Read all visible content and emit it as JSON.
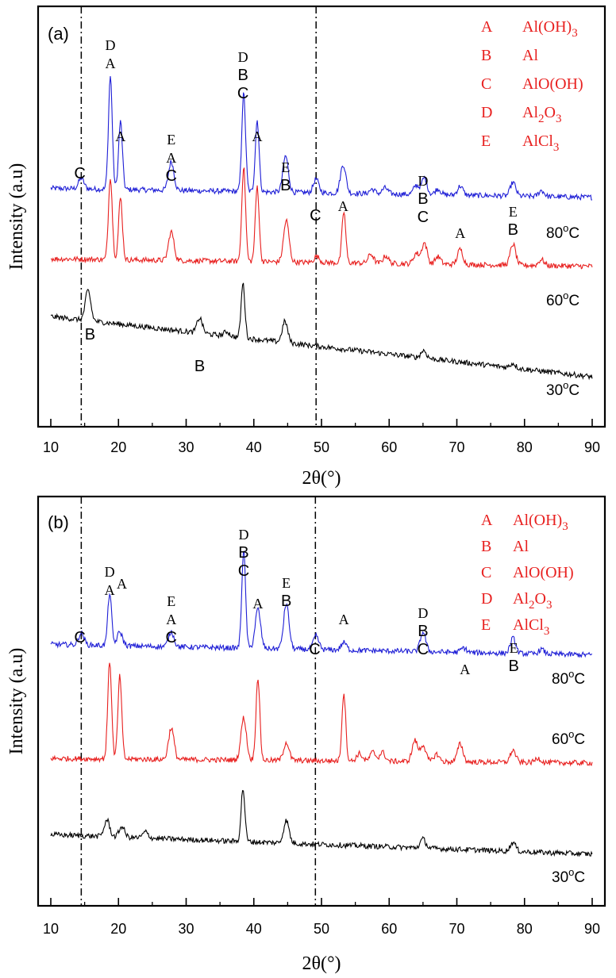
{
  "chart_data": [
    {
      "panel": "(a)",
      "type": "line",
      "xlabel": "2θ(°)",
      "ylabel": "Intensity (a.u)",
      "xlim": [
        10,
        90
      ],
      "xticks": [
        "10",
        "20",
        "30",
        "40",
        "50",
        "60",
        "70",
        "80",
        "90"
      ],
      "ref_lines_x": [
        14.5,
        49.2
      ],
      "legend": [
        {
          "letter": "A",
          "phase": "Al(OH)3"
        },
        {
          "letter": "B",
          "phase": "Al"
        },
        {
          "letter": "C",
          "phase": "AlO(OH)"
        },
        {
          "letter": "D",
          "phase": "Al2O3"
        },
        {
          "letter": "E",
          "phase": "AlCl3"
        }
      ],
      "series": [
        {
          "name": "80°C",
          "color": "#1f1fd6",
          "offset": 270,
          "start": 8,
          "end": -4,
          "peaks": [
            [
              14.5,
              14
            ],
            [
              18.8,
              150
            ],
            [
              20.3,
              90
            ],
            [
              27.8,
              38
            ],
            [
              38.5,
              130
            ],
            [
              40.5,
              95
            ],
            [
              44.7,
              48
            ],
            [
              49.2,
              18
            ],
            [
              53.2,
              38
            ],
            [
              57.5,
              6
            ],
            [
              59.4,
              8
            ],
            [
              64.0,
              12
            ],
            [
              65.2,
              22
            ],
            [
              67.2,
              8
            ],
            [
              70.5,
              12
            ],
            [
              78.3,
              18
            ],
            [
              82.5,
              8
            ]
          ]
        },
        {
          "name": "60°C",
          "color": "#e8201f",
          "offset": 185,
          "start": 4,
          "end": -6,
          "peaks": [
            [
              18.8,
              110
            ],
            [
              20.3,
              82
            ],
            [
              27.8,
              38
            ],
            [
              38.5,
              125
            ],
            [
              40.5,
              100
            ],
            [
              44.8,
              55
            ],
            [
              49.3,
              8
            ],
            [
              53.3,
              68
            ],
            [
              57.3,
              12
            ],
            [
              59.5,
              10
            ],
            [
              64.0,
              14
            ],
            [
              65.2,
              28
            ],
            [
              67.2,
              10
            ],
            [
              70.5,
              20
            ],
            [
              78.3,
              28
            ],
            [
              82.5,
              8
            ]
          ]
        },
        {
          "name": "30°C",
          "color": "#000000",
          "offset": 40,
          "start": 80,
          "end": 0,
          "peaks": [
            [
              15.5,
              40
            ],
            [
              32.0,
              20
            ],
            [
              36.0,
              6
            ],
            [
              38.4,
              72
            ],
            [
              44.6,
              28
            ],
            [
              65.1,
              10
            ],
            [
              78.3,
              6
            ]
          ]
        }
      ],
      "annotations": [
        {
          "x": 14.3,
          "level": 0,
          "letters": [
            "C"
          ]
        },
        {
          "x": 18.8,
          "level": 0,
          "letters": [
            "D",
            "A"
          ]
        },
        {
          "x": 20.3,
          "level": 0,
          "letters": [
            "A"
          ]
        },
        {
          "x": 27.8,
          "level": 0,
          "letters": [
            "E",
            "A",
            "C"
          ]
        },
        {
          "x": 38.4,
          "level": 0,
          "letters": [
            "D",
            "B",
            "C"
          ]
        },
        {
          "x": 40.5,
          "level": 0,
          "letters": [
            "A"
          ]
        },
        {
          "x": 44.7,
          "level": 0,
          "letters": [
            "E",
            "B"
          ]
        },
        {
          "x": 49.1,
          "level": 0,
          "letters": [
            "C"
          ]
        },
        {
          "x": 53.2,
          "level": 0,
          "letters": [
            "A"
          ]
        },
        {
          "x": 65.0,
          "level": 0,
          "letters": [
            "D",
            "B",
            "C"
          ]
        },
        {
          "x": 70.5,
          "level": 0,
          "letters": [
            "A"
          ]
        },
        {
          "x": 78.3,
          "level": 0,
          "letters": [
            "E",
            "B"
          ]
        },
        {
          "x": 15.8,
          "level": 2,
          "letters": [
            "B"
          ]
        },
        {
          "x": 32.0,
          "level": 2,
          "letters": [
            "B"
          ]
        }
      ]
    },
    {
      "panel": "(b)",
      "type": "line",
      "xlabel": "2θ(°)",
      "ylabel": "Intensity (a.u)",
      "xlim": [
        10,
        90
      ],
      "xticks": [
        "10",
        "20",
        "30",
        "40",
        "50",
        "60",
        "70",
        "80",
        "90"
      ],
      "ref_lines_x": [
        14.5,
        49.1
      ],
      "legend": [
        {
          "letter": "A",
          "phase": "Al(OH)3"
        },
        {
          "letter": "B",
          "phase": "Al"
        },
        {
          "letter": "C",
          "phase": "AlO(OH)"
        },
        {
          "letter": "D",
          "phase": "Al2O3"
        },
        {
          "letter": "E",
          "phase": "AlCl3"
        }
      ],
      "series": [
        {
          "name": "80°C",
          "color": "#1f1fd6",
          "offset": 300,
          "start": 8,
          "end": -6,
          "peaks": [
            [
              14.5,
              16
            ],
            [
              18.7,
              70
            ],
            [
              20.2,
              18
            ],
            [
              27.8,
              20
            ],
            [
              38.5,
              130
            ],
            [
              40.6,
              52
            ],
            [
              44.8,
              60
            ],
            [
              49.2,
              18
            ],
            [
              53.3,
              10
            ],
            [
              65.0,
              26
            ],
            [
              71.0,
              6
            ],
            [
              78.3,
              20
            ],
            [
              82.5,
              6
            ]
          ]
        },
        {
          "name": "60°C",
          "color": "#e8201f",
          "offset": 160,
          "start": 4,
          "end": -2,
          "peaks": [
            [
              18.7,
              130
            ],
            [
              20.2,
              110
            ],
            [
              27.8,
              42
            ],
            [
              38.5,
              56
            ],
            [
              40.6,
              110
            ],
            [
              44.8,
              24
            ],
            [
              53.3,
              90
            ],
            [
              55.6,
              10
            ],
            [
              57.6,
              12
            ],
            [
              59.0,
              12
            ],
            [
              63.8,
              28
            ],
            [
              65.0,
              22
            ],
            [
              67.0,
              10
            ],
            [
              70.5,
              24
            ],
            [
              78.3,
              16
            ],
            [
              82.0,
              6
            ]
          ]
        },
        {
          "name": "30°C",
          "color": "#000000",
          "offset": 45,
          "start": 24,
          "end": -2,
          "peaks": [
            [
              18.3,
              22
            ],
            [
              20.5,
              14
            ],
            [
              24.0,
              8
            ],
            [
              38.4,
              70
            ],
            [
              44.8,
              30
            ],
            [
              65.0,
              12
            ],
            [
              78.3,
              12
            ]
          ]
        }
      ],
      "annotations": [
        {
          "x": 14.3,
          "level": 0,
          "letters": [
            "C"
          ]
        },
        {
          "x": 18.7,
          "level": 0,
          "letters": [
            "D",
            "A"
          ]
        },
        {
          "x": 20.5,
          "level": 0,
          "letters": [
            "A"
          ]
        },
        {
          "x": 27.8,
          "level": 0,
          "letters": [
            "E",
            "A",
            "C"
          ]
        },
        {
          "x": 38.5,
          "level": 0,
          "letters": [
            "D",
            "B",
            "C"
          ]
        },
        {
          "x": 40.6,
          "level": 0,
          "letters": [
            "A"
          ]
        },
        {
          "x": 44.8,
          "level": 0,
          "letters": [
            "E",
            "B"
          ]
        },
        {
          "x": 49.0,
          "level": 0,
          "letters": [
            "C"
          ]
        },
        {
          "x": 53.3,
          "level": 0,
          "letters": [
            "A"
          ]
        },
        {
          "x": 65.0,
          "level": 0,
          "letters": [
            "D",
            "B",
            "C"
          ]
        },
        {
          "x": 71.2,
          "level": 0,
          "letters": [
            "A"
          ]
        },
        {
          "x": 78.4,
          "level": 0,
          "letters": [
            "E",
            "B"
          ]
        }
      ]
    }
  ]
}
